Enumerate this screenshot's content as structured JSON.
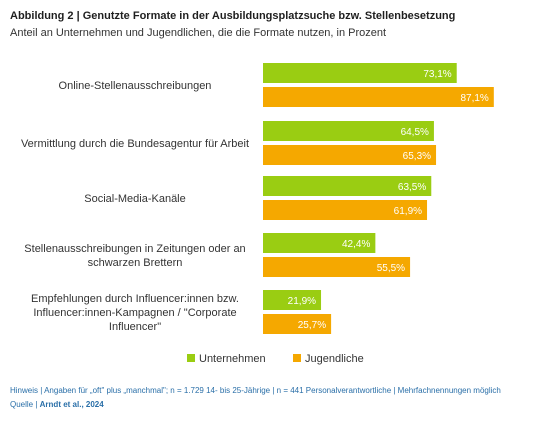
{
  "header": {
    "title": "Abbildung 2 | Genutzte Formate in der Ausbildungsplatzsuche bzw. Stellenbesetzung",
    "subtitle": "Anteil an Unternehmen und Jugendlichen, die die Formate nutzen, in Prozent"
  },
  "colors": {
    "unternehmen": "#9acd12",
    "jugendliche": "#f5a800"
  },
  "chart_data": {
    "type": "bar",
    "orientation": "horizontal",
    "title": "Abbildung 2 | Genutzte Formate in der Ausbildungsplatzsuche bzw. Stellenbesetzung",
    "subtitle": "Anteil an Unternehmen und Jugendlichen, die die Formate nutzen, in Prozent",
    "categories": [
      [
        "Online-Stellenausschreibungen"
      ],
      [
        "Vermittlung durch die Bundesagentur für Arbeit"
      ],
      [
        "Social-Media-Kanäle"
      ],
      [
        "Stellenausschreibungen in Zeitungen oder an",
        "schwarzen Brettern"
      ],
      [
        "Empfehlungen durch Influencer:innen bzw.",
        "Influencer:innen-Kampagnen / \"Corporate",
        "Influencer\""
      ]
    ],
    "series": [
      {
        "name": "Unternehmen",
        "values": [
          73.1,
          64.5,
          63.5,
          42.4,
          21.9
        ],
        "labels": [
          "73,1%",
          "64,5%",
          "63,5%",
          "42,4%",
          "21,9%"
        ],
        "color": "#9acd12"
      },
      {
        "name": "Jugendliche",
        "values": [
          87.1,
          65.3,
          61.9,
          55.5,
          25.7
        ],
        "labels": [
          "87,1%",
          "65,3%",
          "61,9%",
          "55,5%",
          "25,7%"
        ],
        "color": "#f5a800"
      }
    ],
    "xlim": [
      0,
      100
    ],
    "grid": false,
    "legend": "bottom"
  },
  "note": {
    "text": "Hinweis | Angaben für „oft\" plus „manchmal\"; n = 1.729 14- bis 25-Jährige | n = 441 Personalverantwortliche | Mehrfachnennungen möglich",
    "source_prefix": "Quelle | ",
    "source": "Arndt et al., 2024"
  }
}
